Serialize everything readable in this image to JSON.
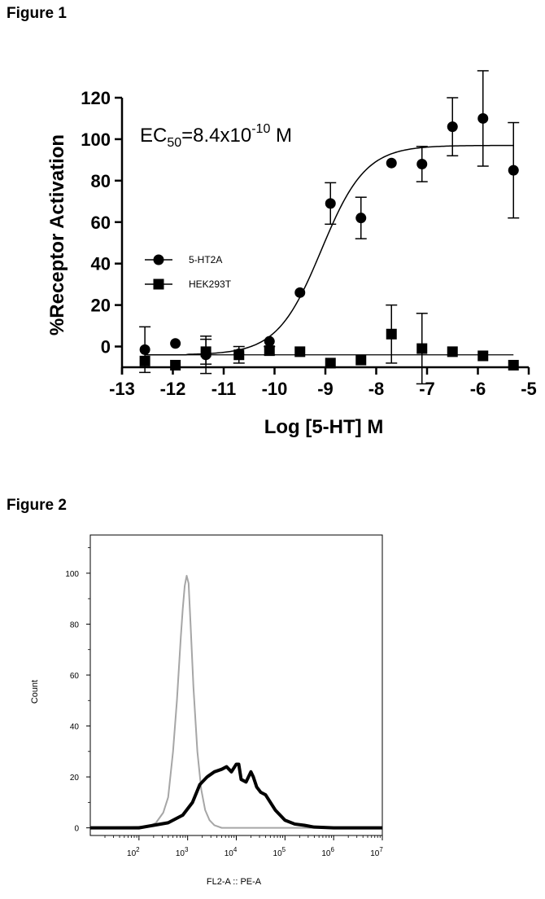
{
  "figures": {
    "fig1_label": "Figure 1",
    "fig2_label": "Figure 2"
  },
  "chart_data": [
    {
      "type": "scatter",
      "xlabel": "Log [5-HT] M",
      "ylabel": "%Receptor Activation",
      "xlim": [
        -13,
        -5
      ],
      "ylim": [
        -10,
        120
      ],
      "x_ticks": [
        -13,
        -12,
        -11,
        -10,
        -9,
        -8,
        -7,
        -6,
        -5
      ],
      "y_ticks": [
        0,
        20,
        40,
        60,
        80,
        100,
        120
      ],
      "annotation": {
        "base": "EC",
        "sub": "50",
        "mid": "=8.4x10",
        "sup": "-10",
        "end": " M"
      },
      "legend_placement": "left-middle",
      "series": [
        {
          "name": "5-HT2A",
          "marker": "circle",
          "color": "#000000",
          "x": [
            -12.55,
            -11.95,
            -11.35,
            -10.7,
            -10.1,
            -9.5,
            -8.9,
            -8.3,
            -7.7,
            -7.1,
            -6.5,
            -5.9,
            -5.3
          ],
          "y": [
            -1.5,
            1.5,
            -4,
            -3.5,
            2.5,
            26,
            69,
            62,
            88.5,
            88,
            106,
            110,
            85
          ],
          "error": [
            11,
            0,
            9,
            0,
            0,
            0,
            10,
            10,
            0,
            8.5,
            14,
            23,
            23
          ],
          "fit": {
            "bottom": -4,
            "top": 97,
            "logEC50": -9.08,
            "hill": 1.0
          }
        },
        {
          "name": "HEK293T",
          "marker": "square",
          "color": "#000000",
          "x": [
            -12.55,
            -11.95,
            -11.35,
            -10.7,
            -10.1,
            -9.5,
            -8.9,
            -8.3,
            -7.7,
            -7.1,
            -6.5,
            -5.9,
            -5.3
          ],
          "y": [
            -7,
            -9,
            -2.5,
            -4,
            -2,
            -2.5,
            -8,
            -6.5,
            6,
            -1,
            -2.5,
            -4.5,
            -9
          ],
          "error": [
            0,
            0,
            6,
            4,
            2,
            0,
            0,
            0,
            14,
            17,
            0,
            0,
            0
          ],
          "fit_level": -4
        }
      ]
    },
    {
      "type": "area",
      "xlabel": "FL2-A :: PE-A",
      "ylabel": "Count",
      "xscale": "log",
      "xlim": [
        1,
        7
      ],
      "ylim": [
        -3,
        115
      ],
      "x_ticks": [
        2,
        3,
        4,
        5,
        6,
        7
      ],
      "x_tick_labels": [
        {
          "base": "10",
          "exp": "2"
        },
        {
          "base": "10",
          "exp": "3"
        },
        {
          "base": "10",
          "exp": "4"
        },
        {
          "base": "10",
          "exp": "5"
        },
        {
          "base": "10",
          "exp": "6"
        },
        {
          "base": "10",
          "exp": "7"
        }
      ],
      "y_ticks": [
        0,
        20,
        40,
        60,
        80,
        100
      ],
      "series": [
        {
          "color": "#a6a6a6",
          "x": [
            1.0,
            2.2,
            2.35,
            2.5,
            2.6,
            2.7,
            2.78,
            2.86,
            2.9,
            2.94,
            2.98,
            3.02,
            3.06,
            3.12,
            3.2,
            3.28,
            3.36,
            3.45,
            3.55,
            3.7,
            4.0,
            7.0
          ],
          "y": [
            0,
            0.5,
            2,
            6,
            12,
            30,
            50,
            75,
            86,
            95,
            99,
            96,
            80,
            55,
            30,
            15,
            7,
            3,
            1,
            0,
            0,
            0
          ]
        },
        {
          "color": "#000000",
          "x": [
            1.0,
            2.0,
            2.3,
            2.6,
            2.9,
            3.1,
            3.25,
            3.4,
            3.55,
            3.7,
            3.8,
            3.9,
            4.0,
            4.05,
            4.1,
            4.2,
            4.3,
            4.35,
            4.42,
            4.5,
            4.6,
            4.7,
            4.8,
            4.9,
            5.0,
            5.2,
            5.4,
            5.6,
            6.0,
            7.0
          ],
          "y": [
            0,
            0,
            1,
            2,
            5,
            10,
            17,
            20,
            22,
            23,
            24,
            22,
            25,
            25,
            19,
            18,
            22,
            20,
            16,
            14,
            13,
            10,
            7,
            5,
            3,
            1.5,
            1,
            0.3,
            0,
            0
          ]
        }
      ]
    }
  ]
}
